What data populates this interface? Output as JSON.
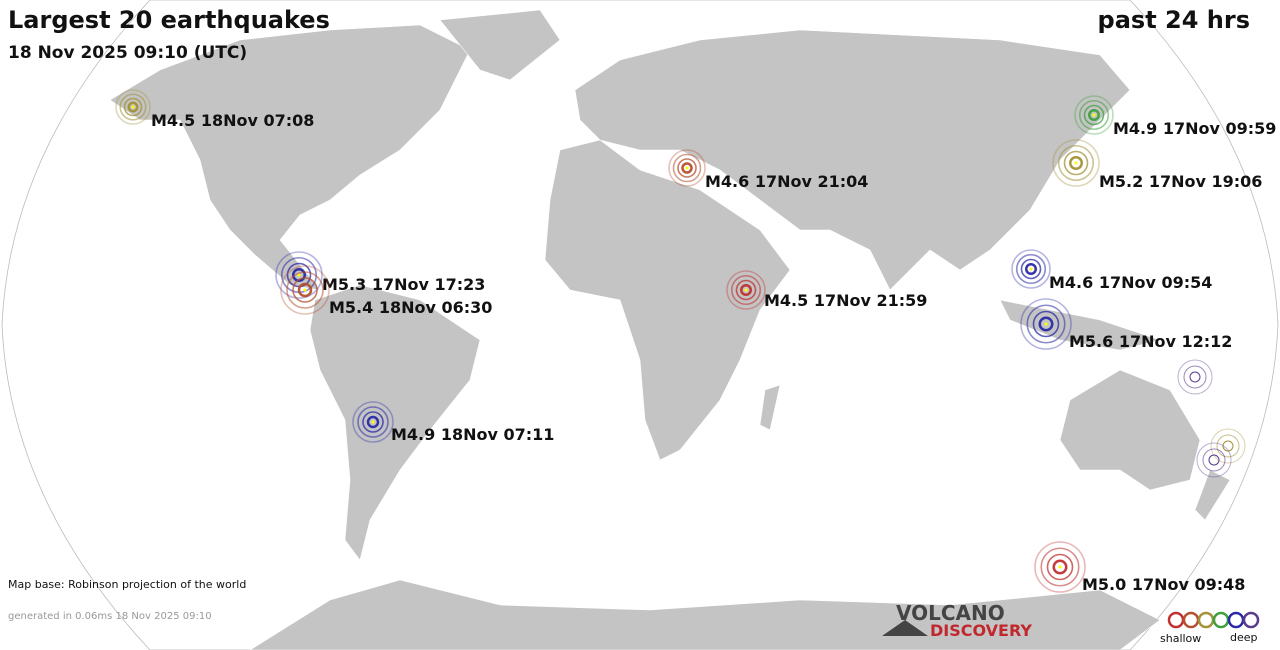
{
  "header": {
    "title": "Largest 20 earthquakes",
    "subtitle": "18 Nov 2025 09:10 (UTC)",
    "period": "past 24 hrs"
  },
  "quakes": [
    {
      "label": "M4.5 18Nov 07:08",
      "color": "#a39238"
    },
    {
      "label": "M4.9 17Nov 09:59",
      "color": "#3fa03f"
    },
    {
      "label": "M4.6 17Nov 21:04",
      "color": "#b5502e"
    },
    {
      "label": "M5.2 17Nov 19:06",
      "color": "#a39238"
    },
    {
      "label": "M5.3 17Nov 17:23",
      "color": "#2a2aa8"
    },
    {
      "label": "M5.4 18Nov 06:30",
      "color": "#b5502e"
    },
    {
      "label": "M4.6 17Nov 09:54",
      "color": "#2a2aa8"
    },
    {
      "label": "M4.5 17Nov 21:59",
      "color": "#c03030"
    },
    {
      "label": "M5.6 17Nov 12:12",
      "color": "#2a2aa8"
    },
    {
      "label": "M4.9 18Nov 07:11",
      "color": "#2a2aa8"
    },
    {
      "label": "M5.0 17Nov 09:48",
      "color": "#c03030"
    }
  ],
  "footer": {
    "map_base": "Map base: Robinson projection of the world",
    "generated": "generated in 0.06ms 18 Nov 2025 09:10"
  },
  "logo": {
    "top": "VOLCANO",
    "bottom": "DISCOVERY"
  },
  "legend": {
    "shallow": "shallow",
    "deep": "deep"
  }
}
